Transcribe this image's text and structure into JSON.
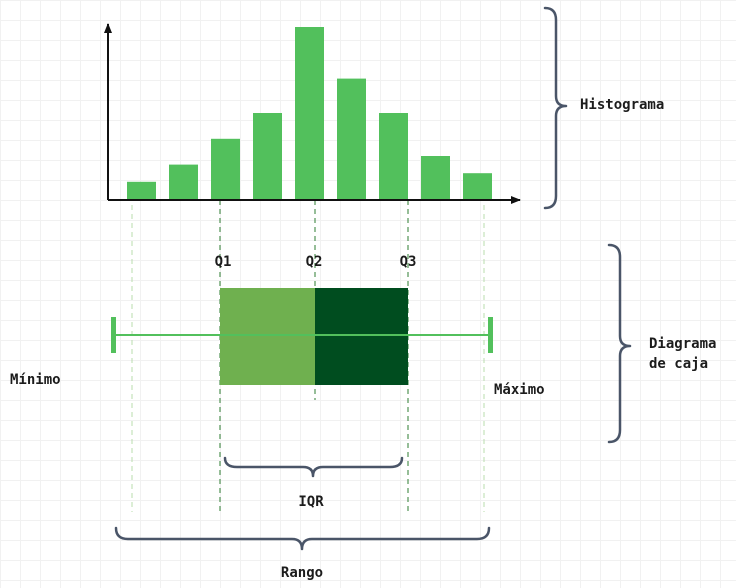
{
  "labels": {
    "histogram": "Histograma",
    "boxplot_line1": "Diagrama",
    "boxplot_line2": "de caja",
    "q1": "Q1",
    "q2": "Q2",
    "q3": "Q3",
    "minimum": "Mínimo",
    "maximum": "Máximo",
    "iqr": "IQR",
    "range": "Rango"
  },
  "colors": {
    "bar": "#52c05c",
    "whisker": "#52c05c",
    "box_lower": "#6fb04f",
    "box_upper": "#004d1f",
    "brace": "#4a5568",
    "guide_quartile": "#2e7d32",
    "guide_extreme": "#b9dcae",
    "axis": "#111111",
    "text": "#1c1c1c"
  },
  "histogram_bars": [
    2,
    4,
    7,
    10,
    20,
    14,
    10,
    5,
    3
  ]
}
